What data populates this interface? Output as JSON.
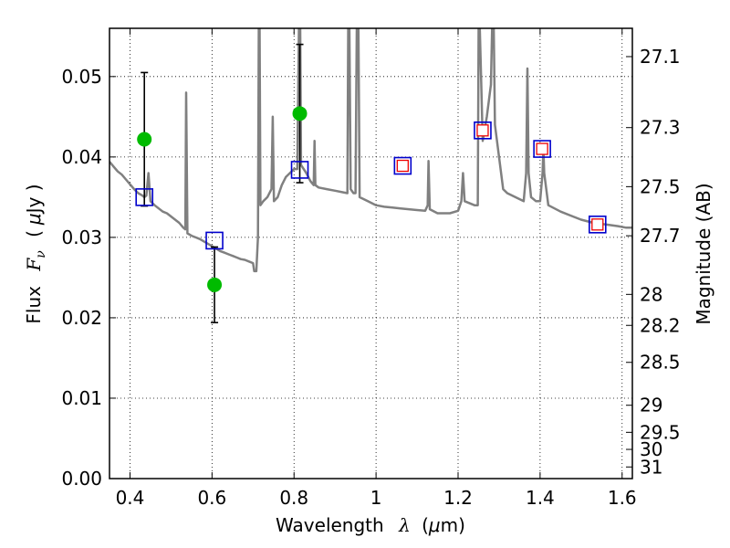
{
  "chart_data": {
    "type": "scatter",
    "xlabel": "Wavelength",
    "xlabel_symbol": "λ",
    "xlabel_unit_prefix": "(",
    "xlabel_unit_mu": "μ",
    "xlabel_unit_rest": "m)",
    "ylabel_left": "Flux",
    "ylabel_left_symbol": "F",
    "ylabel_left_subscript": "ν",
    "ylabel_left_unit_open": "(",
    "ylabel_left_unit_mu": "μ",
    "ylabel_left_unit_rest": "Jy )",
    "ylabel_right": "Magnitude (AB)",
    "xlim": [
      0.35,
      1.625
    ],
    "ylim": [
      0.0,
      0.056
    ],
    "grid": true,
    "x_ticks": [
      0.4,
      0.6,
      0.8,
      1.0,
      1.2,
      1.4,
      1.6
    ],
    "x_tick_labels": [
      "0.4",
      "0.6",
      "0.8",
      "1",
      "1.2",
      "1.4",
      "1.6"
    ],
    "y_ticks": [
      0.0,
      0.01,
      0.02,
      0.03,
      0.04,
      0.05
    ],
    "y_tick_labels": [
      "0.00",
      "0.01",
      "0.02",
      "0.03",
      "0.04",
      "0.05"
    ],
    "right_ticks": [
      {
        "mag": 27.1,
        "label": "27.1"
      },
      {
        "mag": 27.3,
        "label": "27.3"
      },
      {
        "mag": 27.5,
        "label": "27.5"
      },
      {
        "mag": 27.7,
        "label": "27.7"
      },
      {
        "mag": 28.0,
        "label": "28"
      },
      {
        "mag": 28.2,
        "label": "28.2"
      },
      {
        "mag": 28.5,
        "label": "28.5"
      },
      {
        "mag": 29.0,
        "label": "29"
      },
      {
        "mag": 29.5,
        "label": "29.5"
      },
      {
        "mag": 30.0,
        "label": "30"
      },
      {
        "mag": 31.0,
        "label": "31"
      }
    ],
    "colors": {
      "spectrum": "#808080",
      "observed": "#00bb00",
      "model_box": "#0000cc",
      "model_inner": "#ee0000",
      "errorbar": "#000000"
    },
    "series": [
      {
        "name": "model spectrum",
        "kind": "line",
        "points": [
          [
            0.35,
            0.0394
          ],
          [
            0.36,
            0.0388
          ],
          [
            0.37,
            0.0382
          ],
          [
            0.38,
            0.0378
          ],
          [
            0.39,
            0.0372
          ],
          [
            0.4,
            0.0366
          ],
          [
            0.41,
            0.036
          ],
          [
            0.42,
            0.0355
          ],
          [
            0.43,
            0.0352
          ],
          [
            0.435,
            0.035
          ],
          [
            0.44,
            0.0352
          ],
          [
            0.445,
            0.038
          ],
          [
            0.45,
            0.0345
          ],
          [
            0.46,
            0.034
          ],
          [
            0.47,
            0.0336
          ],
          [
            0.48,
            0.0332
          ],
          [
            0.49,
            0.033
          ],
          [
            0.5,
            0.0326
          ],
          [
            0.51,
            0.0322
          ],
          [
            0.52,
            0.0318
          ],
          [
            0.53,
            0.0312
          ],
          [
            0.535,
            0.031
          ],
          [
            0.537,
            0.048
          ],
          [
            0.54,
            0.0305
          ],
          [
            0.55,
            0.0302
          ],
          [
            0.56,
            0.03
          ],
          [
            0.57,
            0.0298
          ],
          [
            0.58,
            0.0295
          ],
          [
            0.59,
            0.0292
          ],
          [
            0.6,
            0.0289
          ],
          [
            0.61,
            0.0286
          ],
          [
            0.62,
            0.0283
          ],
          [
            0.63,
            0.0281
          ],
          [
            0.64,
            0.0279
          ],
          [
            0.65,
            0.0277
          ],
          [
            0.66,
            0.0275
          ],
          [
            0.67,
            0.0273
          ],
          [
            0.68,
            0.0272
          ],
          [
            0.69,
            0.027
          ],
          [
            0.7,
            0.0268
          ],
          [
            0.703,
            0.0258
          ],
          [
            0.708,
            0.0258
          ],
          [
            0.712,
            0.03
          ],
          [
            0.714,
            0.056
          ],
          [
            0.716,
            0.056
          ],
          [
            0.718,
            0.034
          ],
          [
            0.725,
            0.0345
          ],
          [
            0.735,
            0.035
          ],
          [
            0.745,
            0.036
          ],
          [
            0.748,
            0.045
          ],
          [
            0.751,
            0.0345
          ],
          [
            0.76,
            0.035
          ],
          [
            0.77,
            0.0365
          ],
          [
            0.78,
            0.0375
          ],
          [
            0.79,
            0.038
          ],
          [
            0.8,
            0.0385
          ],
          [
            0.808,
            0.0385
          ],
          [
            0.812,
            0.056
          ],
          [
            0.815,
            0.056
          ],
          [
            0.817,
            0.039
          ],
          [
            0.83,
            0.038
          ],
          [
            0.84,
            0.037
          ],
          [
            0.848,
            0.0365
          ],
          [
            0.85,
            0.042
          ],
          [
            0.852,
            0.0365
          ],
          [
            0.86,
            0.0362
          ],
          [
            0.88,
            0.036
          ],
          [
            0.9,
            0.0358
          ],
          [
            0.92,
            0.0356
          ],
          [
            0.93,
            0.0355
          ],
          [
            0.932,
            0.056
          ],
          [
            0.935,
            0.056
          ],
          [
            0.938,
            0.036
          ],
          [
            0.945,
            0.0355
          ],
          [
            0.95,
            0.0355
          ],
          [
            0.953,
            0.056
          ],
          [
            0.957,
            0.056
          ],
          [
            0.96,
            0.035
          ],
          [
            0.98,
            0.0345
          ],
          [
            1.0,
            0.034
          ],
          [
            1.02,
            0.0338
          ],
          [
            1.04,
            0.0337
          ],
          [
            1.06,
            0.0336
          ],
          [
            1.08,
            0.0335
          ],
          [
            1.1,
            0.0334
          ],
          [
            1.12,
            0.0333
          ],
          [
            1.126,
            0.034
          ],
          [
            1.128,
            0.0395
          ],
          [
            1.131,
            0.0335
          ],
          [
            1.15,
            0.033
          ],
          [
            1.18,
            0.033
          ],
          [
            1.2,
            0.0333
          ],
          [
            1.208,
            0.0345
          ],
          [
            1.212,
            0.038
          ],
          [
            1.216,
            0.0345
          ],
          [
            1.24,
            0.034
          ],
          [
            1.248,
            0.034
          ],
          [
            1.25,
            0.056
          ],
          [
            1.253,
            0.056
          ],
          [
            1.256,
            0.05
          ],
          [
            1.26,
            0.042
          ],
          [
            1.27,
            0.045
          ],
          [
            1.28,
            0.049
          ],
          [
            1.283,
            0.056
          ],
          [
            1.287,
            0.056
          ],
          [
            1.29,
            0.044
          ],
          [
            1.3,
            0.04
          ],
          [
            1.31,
            0.036
          ],
          [
            1.32,
            0.0355
          ],
          [
            1.34,
            0.035
          ],
          [
            1.36,
            0.0345
          ],
          [
            1.366,
            0.038
          ],
          [
            1.369,
            0.051
          ],
          [
            1.372,
            0.038
          ],
          [
            1.378,
            0.035
          ],
          [
            1.39,
            0.0345
          ],
          [
            1.4,
            0.0345
          ],
          [
            1.406,
            0.038
          ],
          [
            1.408,
            0.041
          ],
          [
            1.41,
            0.038
          ],
          [
            1.42,
            0.034
          ],
          [
            1.45,
            0.0332
          ],
          [
            1.48,
            0.0326
          ],
          [
            1.5,
            0.0322
          ],
          [
            1.53,
            0.0318
          ],
          [
            1.56,
            0.0316
          ],
          [
            1.59,
            0.0314
          ],
          [
            1.61,
            0.0312
          ],
          [
            1.625,
            0.0312
          ]
        ]
      },
      {
        "name": "observed photometry",
        "kind": "points_with_errors",
        "points": [
          {
            "x": 0.435,
            "y": 0.0422,
            "err": 0.0083
          },
          {
            "x": 0.606,
            "y": 0.0241,
            "err": 0.0047
          },
          {
            "x": 0.814,
            "y": 0.0454,
            "err": 0.0086
          }
        ]
      },
      {
        "name": "model photometry (optical)",
        "kind": "squares",
        "points": [
          {
            "x": 0.435,
            "y": 0.035
          },
          {
            "x": 0.606,
            "y": 0.0296
          },
          {
            "x": 0.814,
            "y": 0.0384
          }
        ]
      },
      {
        "name": "model photometry (infrared)",
        "kind": "double_squares",
        "points": [
          {
            "x": 1.065,
            "y": 0.0389
          },
          {
            "x": 1.26,
            "y": 0.0433
          },
          {
            "x": 1.405,
            "y": 0.041
          },
          {
            "x": 1.54,
            "y": 0.0316
          }
        ]
      }
    ]
  }
}
